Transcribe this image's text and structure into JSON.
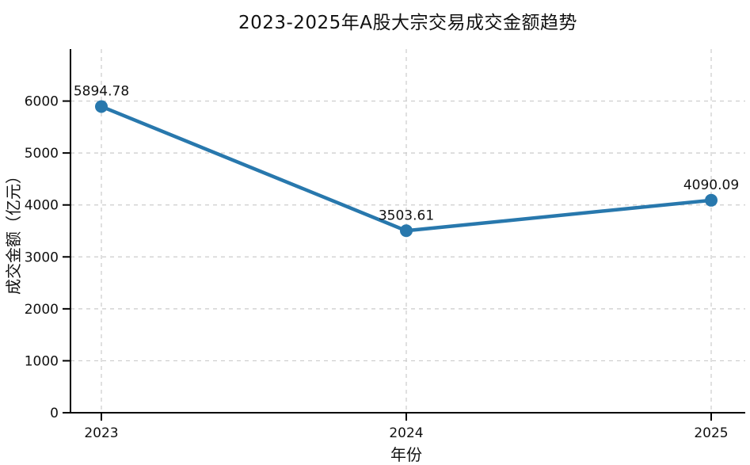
{
  "chart_data": {
    "type": "line",
    "title": "2023-2025年A股大宗交易成交金额趋势",
    "xlabel": "年份",
    "ylabel": "成交金额（亿元）",
    "categories": [
      "2023",
      "2024",
      "2025"
    ],
    "series": [
      {
        "name": "成交金额",
        "values": [
          5894.78,
          3503.61,
          4090.09
        ]
      }
    ],
    "point_labels": [
      "5894.78",
      "3503.61",
      "4090.09"
    ],
    "yticks": [
      0,
      1000,
      2000,
      3000,
      4000,
      5000,
      6000
    ],
    "ylim": [
      0,
      7000
    ],
    "grid": true,
    "grid_style": "dashed",
    "legend": "none",
    "colors": {
      "line": "#2878AD",
      "marker": "#2878AD",
      "grid": "#cbcbcb",
      "axis": "#000000",
      "text": "#111111",
      "background": "#ffffff"
    }
  }
}
